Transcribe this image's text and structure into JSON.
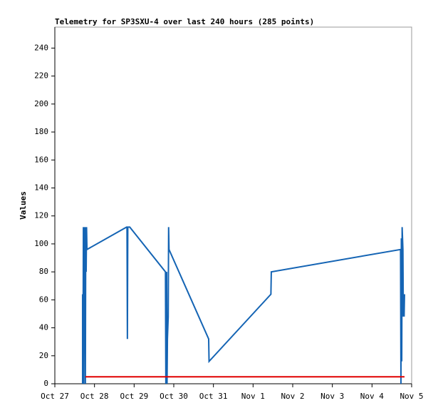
{
  "chart_data": {
    "type": "line",
    "title": "Telemetry for SP3SXU-4 over last 240 hours (285 points)",
    "y_label": "Values",
    "xlim": [
      0,
      9
    ],
    "xticks": [
      {
        "value": 0,
        "label": "Oct 27"
      },
      {
        "value": 1,
        "label": "Oct 28"
      },
      {
        "value": 2,
        "label": "Oct 29"
      },
      {
        "value": 3,
        "label": "Oct 30"
      },
      {
        "value": 4,
        "label": "Oct 31"
      },
      {
        "value": 5,
        "label": "Nov 1"
      },
      {
        "value": 6,
        "label": "Nov 2"
      },
      {
        "value": 7,
        "label": "Nov 3"
      },
      {
        "value": 8,
        "label": "Nov 4"
      },
      {
        "value": 9,
        "label": "Nov 5"
      }
    ],
    "ylim": [
      0,
      255
    ],
    "yticks": [
      0,
      20,
      40,
      60,
      80,
      100,
      120,
      140,
      160,
      180,
      200,
      220,
      240
    ],
    "grid": false,
    "series": [
      {
        "color": "#1464b4",
        "x": [
          0.7,
          0.7,
          0.71,
          0.72,
          0.73,
          0.74,
          0.75,
          0.76,
          0.77,
          0.78,
          0.79,
          0.8,
          0.81,
          1.81,
          1.82,
          1.83,
          1.84,
          1.89,
          2.79,
          2.8,
          2.82,
          2.83,
          2.84,
          2.86,
          2.87,
          2.88,
          3.88,
          3.89,
          5.45,
          5.46,
          8.72,
          8.73,
          8.74,
          8.75,
          8.76,
          8.78,
          8.79,
          8.8,
          8.81,
          8.82
        ],
        "values": [
          0,
          64,
          0,
          112,
          0,
          112,
          64,
          112,
          0,
          112,
          80,
          112,
          96,
          112,
          112,
          32,
          112,
          112,
          80,
          0,
          80,
          0,
          32,
          48,
          112,
          96,
          32,
          16,
          64,
          80,
          96,
          0,
          104,
          16,
          112,
          96,
          48,
          64,
          48,
          64
        ]
      },
      {
        "color": "#e00000",
        "x": [
          0.77,
          8.82
        ],
        "values": [
          5,
          5
        ]
      }
    ]
  }
}
